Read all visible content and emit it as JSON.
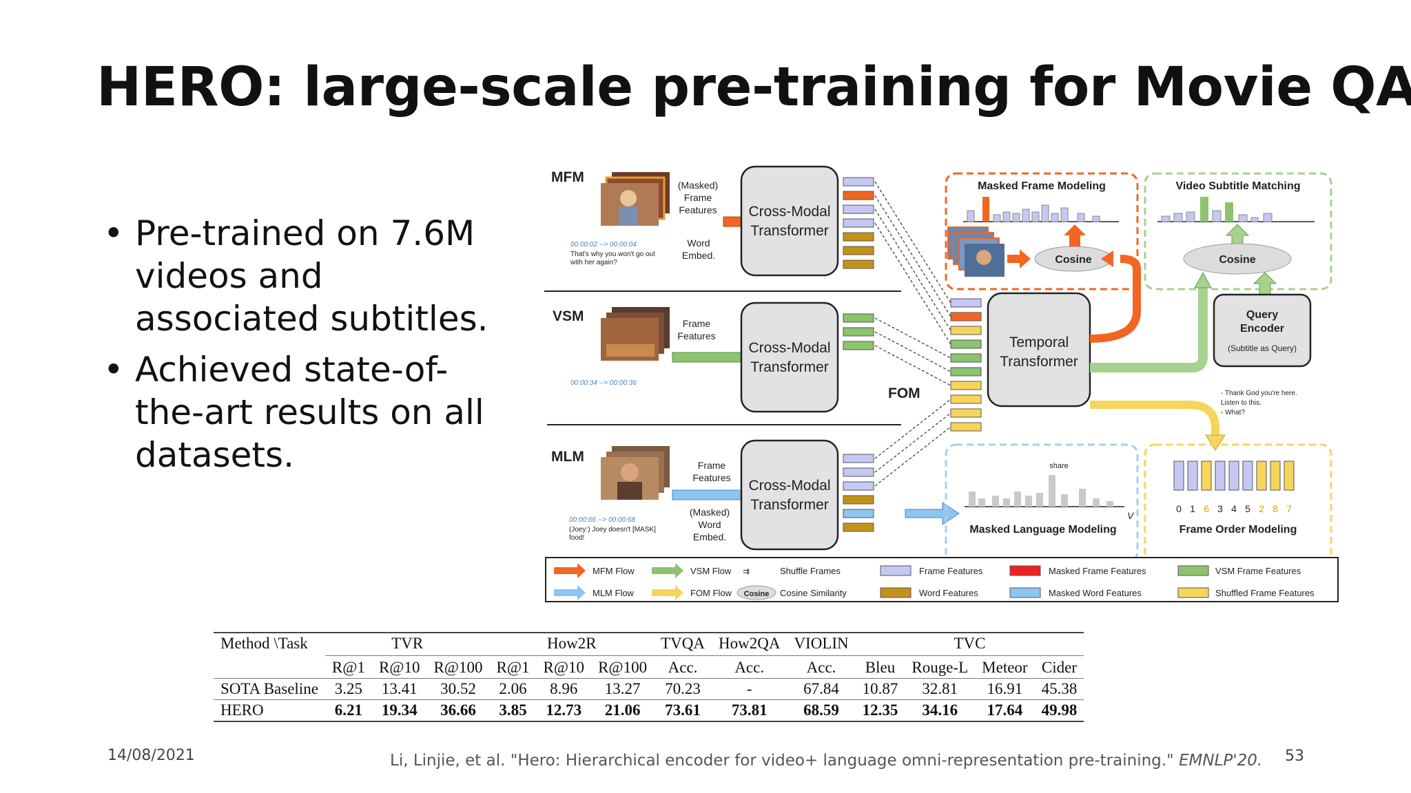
{
  "slide": {
    "title": "HERO: large-scale pre-training for Movie QA",
    "bullets": [
      "Pre-trained on 7.6M videos and associated subtitles.",
      "Achieved state-of-the-art results on all datasets."
    ],
    "date": "14/08/2021",
    "citation_main": "Li, Linjie, et al. \"Hero: Hierarchical encoder for video+ language omni-representation pre-training.\" ",
    "citation_venue": "EMNLP'20.",
    "page_number": "53"
  },
  "figure": {
    "rows": [
      {
        "tag": "MFM",
        "input_top": "(Masked) Frame Features",
        "input_bottom": "Word Embed.",
        "timestamp": "00:00:02 --> 00:00:04",
        "subtitle": "That's why you won't go out with her again?",
        "encoder": "Cross-Modal Transformer"
      },
      {
        "tag": "VSM",
        "input_top": "Frame Features",
        "input_bottom": "",
        "timestamp": "00:00:34 --> 00:00:36",
        "subtitle": "",
        "encoder": "Cross-Modal Transformer"
      },
      {
        "tag": "MLM",
        "input_top": "Frame Features",
        "input_bottom": "(Masked) Word Embed.",
        "timestamp": "00:00:66 --> 00:00:68",
        "subtitle": "(Joey:) Joey doesn't [MASK] food!",
        "encoder": "Cross-Modal Transformer"
      }
    ],
    "fom_label": "FOM",
    "temporal": "Temporal Transformer",
    "mfm_box": "Masked Frame Modeling",
    "vsm_box": "Video Subtitle Matching",
    "mlm_box": "Masked Language Modeling",
    "fom_box": "Frame Order Modeling",
    "cosine": "Cosine",
    "query_encoder": "Query Encoder",
    "query_note": "(Subtitle as Query)",
    "query_text": "- Thank God you're here. - Listen to this. - What?",
    "share": "share",
    "vocab": "V",
    "order_digits": [
      "0",
      "1",
      "6",
      "3",
      "4",
      "5",
      "2",
      "8",
      "7"
    ],
    "legend": [
      "MFM Flow",
      "VSM Flow",
      "Shuffle Frames",
      "Frame Features",
      "Masked Frame Features",
      "VSM Frame Features",
      "MLM Flow",
      "FOM Flow",
      "Cosine Similarity",
      "Word Features",
      "Masked Word Features",
      "Shuffled Frame Features"
    ],
    "legend_cosine": "Cosine",
    "colors": {
      "mfm": "#f26522",
      "vsm": "#8dc26f",
      "mlm": "#8ec4f0",
      "fom": "#f7d55c",
      "frame": "#c5c8f3",
      "word": "#c49219",
      "masked_frame": "#ee2222"
    }
  },
  "table": {
    "corner": "Method \\Task",
    "groups": [
      "TVR",
      "How2R",
      "TVQA",
      "How2QA",
      "VIOLIN",
      "TVC"
    ],
    "metrics": [
      "R@1",
      "R@10",
      "R@100",
      "R@1",
      "R@10",
      "R@100",
      "Acc.",
      "Acc.",
      "Acc.",
      "Bleu",
      "Rouge-L",
      "Meteor",
      "Cider"
    ],
    "rows": [
      {
        "method": "SOTA Baseline",
        "values": [
          "3.25",
          "13.41",
          "30.52",
          "2.06",
          "8.96",
          "13.27",
          "70.23",
          "-",
          "67.84",
          "10.87",
          "32.81",
          "16.91",
          "45.38"
        ]
      },
      {
        "method": "HERO",
        "values": [
          "6.21",
          "19.34",
          "36.66",
          "3.85",
          "12.73",
          "21.06",
          "73.61",
          "73.81",
          "68.59",
          "12.35",
          "34.16",
          "17.64",
          "49.98"
        ]
      }
    ]
  }
}
